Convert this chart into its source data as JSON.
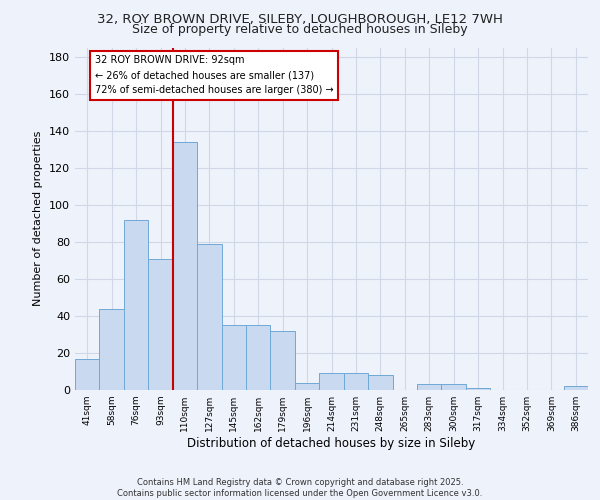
{
  "title_line1": "32, ROY BROWN DRIVE, SILEBY, LOUGHBOROUGH, LE12 7WH",
  "title_line2": "Size of property relative to detached houses in Sileby",
  "xlabel": "Distribution of detached houses by size in Sileby",
  "ylabel": "Number of detached properties",
  "categories": [
    "41sqm",
    "58sqm",
    "76sqm",
    "93sqm",
    "110sqm",
    "127sqm",
    "145sqm",
    "162sqm",
    "179sqm",
    "196sqm",
    "214sqm",
    "231sqm",
    "248sqm",
    "265sqm",
    "283sqm",
    "300sqm",
    "317sqm",
    "334sqm",
    "352sqm",
    "369sqm",
    "386sqm"
  ],
  "values": [
    17,
    44,
    92,
    71,
    134,
    79,
    35,
    35,
    32,
    4,
    9,
    9,
    8,
    0,
    3,
    3,
    1,
    0,
    0,
    0,
    2
  ],
  "bar_color": "#c8d9f0",
  "bar_edge_color": "#6fa8d6",
  "grid_color": "#d0d8e8",
  "vline_x": 3.5,
  "vline_color": "#cc0000",
  "annotation_line1": "32 ROY BROWN DRIVE: 92sqm",
  "annotation_line2": "← 26% of detached houses are smaller (137)",
  "annotation_line3": "72% of semi-detached houses are larger (380) →",
  "annotation_box_color": "#ffffff",
  "annotation_box_edge": "#cc0000",
  "ylim": [
    0,
    185
  ],
  "yticks": [
    0,
    20,
    40,
    60,
    80,
    100,
    120,
    140,
    160,
    180
  ],
  "footer": "Contains HM Land Registry data © Crown copyright and database right 2025.\nContains public sector information licensed under the Open Government Licence v3.0.",
  "background_color": "#eef2fb"
}
